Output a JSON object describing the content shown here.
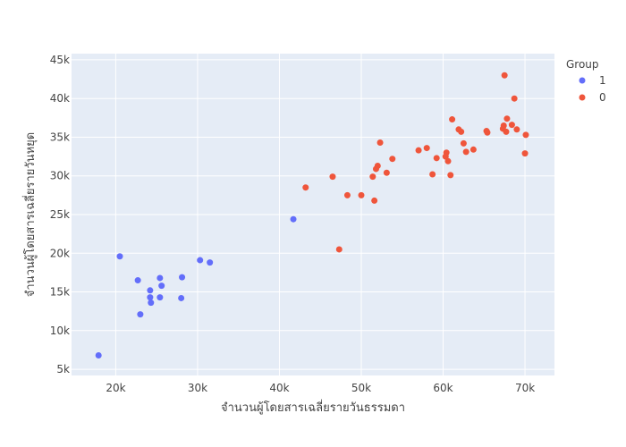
{
  "chart_data": {
    "type": "scatter",
    "xlabel": "จำนวนผู้โดยสารเฉลี่ยรายวันธรรมดา",
    "ylabel": "จำนวนผู้โดยสารเฉลี่ยรายวันหยุด",
    "xlim": [
      14600,
      73600
    ],
    "ylim": [
      4200,
      45800
    ],
    "x_ticks": [
      {
        "value": 20000,
        "label": "20k"
      },
      {
        "value": 30000,
        "label": "30k"
      },
      {
        "value": 40000,
        "label": "40k"
      },
      {
        "value": 50000,
        "label": "50k"
      },
      {
        "value": 60000,
        "label": "60k"
      },
      {
        "value": 70000,
        "label": "70k"
      }
    ],
    "y_ticks": [
      {
        "value": 5000,
        "label": "5k"
      },
      {
        "value": 10000,
        "label": "10k"
      },
      {
        "value": 15000,
        "label": "15k"
      },
      {
        "value": 20000,
        "label": "20k"
      },
      {
        "value": 25000,
        "label": "25k"
      },
      {
        "value": 30000,
        "label": "30k"
      },
      {
        "value": 35000,
        "label": "35k"
      },
      {
        "value": 40000,
        "label": "40k"
      },
      {
        "value": 45000,
        "label": "45k"
      }
    ],
    "grid": true,
    "legend": {
      "title": "Group",
      "position": "top-right"
    },
    "series": [
      {
        "name": "1",
        "color": "#636efa",
        "points": [
          [
            17900,
            6800
          ],
          [
            20500,
            19600
          ],
          [
            22700,
            16500
          ],
          [
            23000,
            12100
          ],
          [
            24200,
            15200
          ],
          [
            24200,
            14300
          ],
          [
            24300,
            13600
          ],
          [
            25400,
            16800
          ],
          [
            25400,
            14300
          ],
          [
            25600,
            15800
          ],
          [
            28000,
            14200
          ],
          [
            28100,
            16900
          ],
          [
            30300,
            19100
          ],
          [
            31500,
            18800
          ],
          [
            41700,
            24400
          ]
        ]
      },
      {
        "name": "0",
        "color": "#ef553b",
        "points": [
          [
            43200,
            28500
          ],
          [
            46500,
            29900
          ],
          [
            47300,
            20500
          ],
          [
            48300,
            27500
          ],
          [
            50000,
            27500
          ],
          [
            51400,
            29900
          ],
          [
            51600,
            26800
          ],
          [
            51800,
            30900
          ],
          [
            52000,
            31300
          ],
          [
            52300,
            34300
          ],
          [
            53100,
            30400
          ],
          [
            53800,
            32200
          ],
          [
            57000,
            33300
          ],
          [
            58000,
            33600
          ],
          [
            58700,
            30200
          ],
          [
            59200,
            32300
          ],
          [
            60300,
            32500
          ],
          [
            60400,
            33000
          ],
          [
            60600,
            31900
          ],
          [
            60900,
            30100
          ],
          [
            61100,
            37300
          ],
          [
            61900,
            36000
          ],
          [
            62200,
            35700
          ],
          [
            62500,
            34200
          ],
          [
            62800,
            33100
          ],
          [
            63700,
            33400
          ],
          [
            65300,
            35800
          ],
          [
            65400,
            35600
          ],
          [
            67300,
            36100
          ],
          [
            67400,
            36500
          ],
          [
            67500,
            43000
          ],
          [
            67700,
            35700
          ],
          [
            67800,
            37400
          ],
          [
            68400,
            36600
          ],
          [
            68700,
            40000
          ],
          [
            69000,
            36000
          ],
          [
            70000,
            32900
          ],
          [
            70100,
            35300
          ]
        ]
      }
    ]
  }
}
